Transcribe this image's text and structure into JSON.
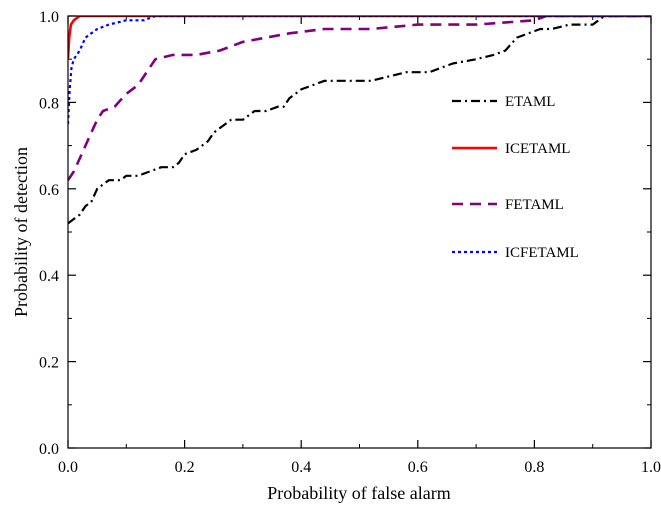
{
  "chart_data": {
    "type": "line",
    "title": "",
    "xlabel": "Probability of false alarm",
    "ylabel": "Probability of detection",
    "xlim": [
      0.0,
      1.0
    ],
    "ylim": [
      0.0,
      1.0
    ],
    "xticks": [
      "0.0",
      "0.2",
      "0.4",
      "0.6",
      "0.8",
      "1.0"
    ],
    "yticks": [
      "0.0",
      "0.2",
      "0.4",
      "0.6",
      "0.8",
      "1.0"
    ],
    "grid": false,
    "legend_position": "right",
    "series": [
      {
        "name": "ETAML",
        "color": "#000000",
        "style": "dash-dot",
        "points": [
          [
            0.0,
            0.52
          ],
          [
            0.01,
            0.53
          ],
          [
            0.02,
            0.54
          ],
          [
            0.03,
            0.56
          ],
          [
            0.04,
            0.57
          ],
          [
            0.05,
            0.6
          ],
          [
            0.06,
            0.61
          ],
          [
            0.07,
            0.62
          ],
          [
            0.09,
            0.62
          ],
          [
            0.1,
            0.63
          ],
          [
            0.12,
            0.63
          ],
          [
            0.14,
            0.64
          ],
          [
            0.16,
            0.65
          ],
          [
            0.18,
            0.65
          ],
          [
            0.19,
            0.66
          ],
          [
            0.2,
            0.68
          ],
          [
            0.22,
            0.69
          ],
          [
            0.24,
            0.71
          ],
          [
            0.25,
            0.73
          ],
          [
            0.26,
            0.74
          ],
          [
            0.27,
            0.75
          ],
          [
            0.28,
            0.76
          ],
          [
            0.3,
            0.76
          ],
          [
            0.32,
            0.78
          ],
          [
            0.34,
            0.78
          ],
          [
            0.36,
            0.79
          ],
          [
            0.37,
            0.79
          ],
          [
            0.38,
            0.81
          ],
          [
            0.39,
            0.82
          ],
          [
            0.4,
            0.83
          ],
          [
            0.42,
            0.84
          ],
          [
            0.44,
            0.85
          ],
          [
            0.46,
            0.85
          ],
          [
            0.5,
            0.85
          ],
          [
            0.52,
            0.85
          ],
          [
            0.55,
            0.86
          ],
          [
            0.58,
            0.87
          ],
          [
            0.62,
            0.87
          ],
          [
            0.64,
            0.88
          ],
          [
            0.66,
            0.89
          ],
          [
            0.7,
            0.9
          ],
          [
            0.73,
            0.91
          ],
          [
            0.75,
            0.92
          ],
          [
            0.77,
            0.95
          ],
          [
            0.79,
            0.96
          ],
          [
            0.81,
            0.97
          ],
          [
            0.83,
            0.97
          ],
          [
            0.86,
            0.98
          ],
          [
            0.9,
            0.98
          ],
          [
            0.92,
            1.0
          ],
          [
            1.0,
            1.0
          ]
        ]
      },
      {
        "name": "ICETAML",
        "color": "#ff0000",
        "style": "solid",
        "points": [
          [
            0.0,
            0.9
          ],
          [
            0.002,
            0.95
          ],
          [
            0.005,
            0.98
          ],
          [
            0.01,
            0.99
          ],
          [
            0.02,
            1.0
          ],
          [
            1.0,
            1.0
          ]
        ]
      },
      {
        "name": "FETAML",
        "color": "#800080",
        "style": "dash",
        "points": [
          [
            0.0,
            0.62
          ],
          [
            0.01,
            0.64
          ],
          [
            0.02,
            0.67
          ],
          [
            0.03,
            0.7
          ],
          [
            0.04,
            0.73
          ],
          [
            0.05,
            0.76
          ],
          [
            0.06,
            0.78
          ],
          [
            0.08,
            0.79
          ],
          [
            0.1,
            0.82
          ],
          [
            0.12,
            0.84
          ],
          [
            0.13,
            0.86
          ],
          [
            0.14,
            0.88
          ],
          [
            0.15,
            0.9
          ],
          [
            0.18,
            0.91
          ],
          [
            0.22,
            0.91
          ],
          [
            0.26,
            0.92
          ],
          [
            0.3,
            0.94
          ],
          [
            0.34,
            0.95
          ],
          [
            0.38,
            0.96
          ],
          [
            0.44,
            0.97
          ],
          [
            0.52,
            0.97
          ],
          [
            0.6,
            0.98
          ],
          [
            0.7,
            0.98
          ],
          [
            0.8,
            0.99
          ],
          [
            0.82,
            1.0
          ],
          [
            1.0,
            1.0
          ]
        ]
      },
      {
        "name": "ICFETAML",
        "color": "#0000ff",
        "style": "dot",
        "points": [
          [
            0.0,
            0.75
          ],
          [
            0.003,
            0.83
          ],
          [
            0.006,
            0.88
          ],
          [
            0.01,
            0.9
          ],
          [
            0.02,
            0.92
          ],
          [
            0.03,
            0.95
          ],
          [
            0.04,
            0.96
          ],
          [
            0.05,
            0.97
          ],
          [
            0.07,
            0.98
          ],
          [
            0.1,
            0.99
          ],
          [
            0.13,
            0.99
          ],
          [
            0.15,
            1.0
          ],
          [
            1.0,
            1.0
          ]
        ]
      }
    ]
  }
}
